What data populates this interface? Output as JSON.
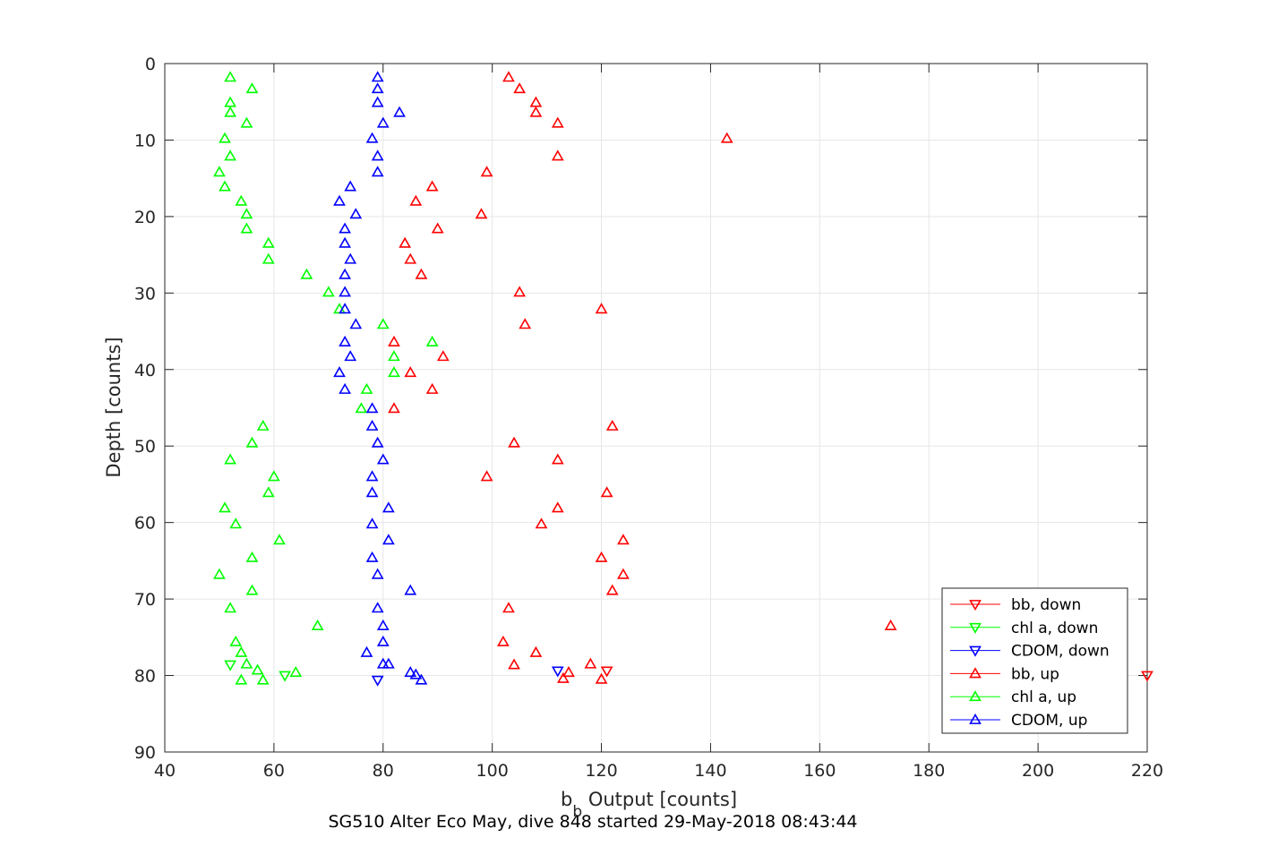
{
  "chart_data": {
    "type": "scatter",
    "title": "SG510 Alter Eco May, dive 848 started 29-May-2018 08:43:44",
    "xlabel_main": "b",
    "xlabel_sub": "b",
    "xlabel_rest": " Output [counts]",
    "ylabel": "Depth [counts]",
    "xlim": [
      40,
      220
    ],
    "ylim": [
      0,
      90
    ],
    "y_reversed": true,
    "grid": true,
    "legend_position": "lower-right",
    "x_ticks": [
      40,
      60,
      80,
      100,
      120,
      140,
      160,
      180,
      200,
      220
    ],
    "y_ticks": [
      0,
      10,
      20,
      30,
      40,
      50,
      60,
      70,
      80,
      90
    ],
    "x_tick_labels": [
      "40",
      "60",
      "80",
      "100",
      "120",
      "140",
      "160",
      "180",
      "200",
      "220"
    ],
    "y_tick_labels": [
      "0",
      "10",
      "20",
      "30",
      "40",
      "50",
      "60",
      "70",
      "80",
      "90"
    ],
    "series": [
      {
        "name": "bb, down",
        "color": "#ff0000",
        "marker": "triangle-down",
        "points": [
          [
            220,
            80.0
          ],
          [
            121,
            79.4
          ]
        ]
      },
      {
        "name": "chl a, down",
        "color": "#00ff00",
        "marker": "triangle-down",
        "points": [
          [
            52,
            78.6
          ],
          [
            62,
            80.0
          ]
        ]
      },
      {
        "name": "CDOM, down",
        "color": "#0000ff",
        "marker": "triangle-down",
        "points": [
          [
            112,
            79.4
          ],
          [
            79,
            80.6
          ]
        ]
      },
      {
        "name": "bb, up",
        "color": "#ff0000",
        "marker": "triangle-up",
        "points": [
          [
            103,
            1.8
          ],
          [
            105,
            3.3
          ],
          [
            108,
            5.1
          ],
          [
            108,
            6.4
          ],
          [
            112,
            7.8
          ],
          [
            143,
            9.8
          ],
          [
            112,
            12.1
          ],
          [
            99,
            14.2
          ],
          [
            89,
            16.1
          ],
          [
            86,
            18.0
          ],
          [
            98,
            19.7
          ],
          [
            90,
            21.6
          ],
          [
            84,
            23.5
          ],
          [
            85,
            25.6
          ],
          [
            87,
            27.6
          ],
          [
            105,
            29.9
          ],
          [
            120,
            32.1
          ],
          [
            106,
            34.1
          ],
          [
            82,
            36.4
          ],
          [
            91,
            38.3
          ],
          [
            85,
            40.4
          ],
          [
            89,
            42.6
          ],
          [
            82,
            45.1
          ],
          [
            122,
            47.4
          ],
          [
            104,
            49.6
          ],
          [
            112,
            51.8
          ],
          [
            99,
            54.0
          ],
          [
            121,
            56.1
          ],
          [
            112,
            58.1
          ],
          [
            109,
            60.2
          ],
          [
            124,
            62.3
          ],
          [
            120,
            64.6
          ],
          [
            124,
            66.8
          ],
          [
            122,
            68.9
          ],
          [
            103,
            71.2
          ],
          [
            173,
            73.5
          ],
          [
            102,
            75.6
          ],
          [
            108,
            77.0
          ],
          [
            104,
            78.6
          ],
          [
            118,
            78.5
          ],
          [
            114,
            79.6
          ],
          [
            113,
            80.4
          ],
          [
            120,
            80.5
          ]
        ]
      },
      {
        "name": "chl a, up",
        "color": "#00ff00",
        "marker": "triangle-up",
        "points": [
          [
            52,
            1.8
          ],
          [
            56,
            3.3
          ],
          [
            52,
            5.1
          ],
          [
            52,
            6.4
          ],
          [
            55,
            7.8
          ],
          [
            51,
            9.8
          ],
          [
            52,
            12.1
          ],
          [
            50,
            14.2
          ],
          [
            51,
            16.1
          ],
          [
            54,
            18.0
          ],
          [
            55,
            19.7
          ],
          [
            55,
            21.6
          ],
          [
            59,
            23.5
          ],
          [
            59,
            25.6
          ],
          [
            66,
            27.6
          ],
          [
            70,
            29.9
          ],
          [
            72,
            32.1
          ],
          [
            80,
            34.1
          ],
          [
            89,
            36.4
          ],
          [
            82,
            38.3
          ],
          [
            82,
            40.4
          ],
          [
            77,
            42.6
          ],
          [
            76,
            45.1
          ],
          [
            58,
            47.4
          ],
          [
            56,
            49.6
          ],
          [
            52,
            51.8
          ],
          [
            60,
            54.0
          ],
          [
            59,
            56.1
          ],
          [
            51,
            58.1
          ],
          [
            53,
            60.2
          ],
          [
            61,
            62.3
          ],
          [
            56,
            64.6
          ],
          [
            50,
            66.8
          ],
          [
            56,
            68.9
          ],
          [
            52,
            71.2
          ],
          [
            68,
            73.5
          ],
          [
            53,
            75.6
          ],
          [
            54,
            77.0
          ],
          [
            55,
            78.5
          ],
          [
            57,
            79.3
          ],
          [
            64,
            79.6
          ],
          [
            54,
            80.6
          ],
          [
            58,
            80.6
          ]
        ]
      },
      {
        "name": "CDOM, up",
        "color": "#0000ff",
        "marker": "triangle-up",
        "points": [
          [
            79,
            1.8
          ],
          [
            79,
            3.3
          ],
          [
            79,
            5.1
          ],
          [
            83,
            6.4
          ],
          [
            80,
            7.8
          ],
          [
            78,
            9.8
          ],
          [
            79,
            12.1
          ],
          [
            79,
            14.2
          ],
          [
            74,
            16.1
          ],
          [
            72,
            18.0
          ],
          [
            75,
            19.7
          ],
          [
            73,
            21.6
          ],
          [
            73,
            23.5
          ],
          [
            74,
            25.6
          ],
          [
            73,
            27.6
          ],
          [
            73,
            29.9
          ],
          [
            73,
            32.1
          ],
          [
            75,
            34.1
          ],
          [
            73,
            36.4
          ],
          [
            74,
            38.3
          ],
          [
            72,
            40.4
          ],
          [
            73,
            42.6
          ],
          [
            78,
            45.1
          ],
          [
            78,
            47.4
          ],
          [
            79,
            49.6
          ],
          [
            80,
            51.8
          ],
          [
            78,
            54.0
          ],
          [
            78,
            56.1
          ],
          [
            81,
            58.1
          ],
          [
            78,
            60.2
          ],
          [
            81,
            62.3
          ],
          [
            78,
            64.6
          ],
          [
            79,
            66.8
          ],
          [
            85,
            68.9
          ],
          [
            79,
            71.2
          ],
          [
            80,
            73.5
          ],
          [
            80,
            75.6
          ],
          [
            77,
            77.0
          ],
          [
            81,
            78.5
          ],
          [
            80,
            78.5
          ],
          [
            85,
            79.6
          ],
          [
            86,
            79.9
          ],
          [
            87,
            80.6
          ]
        ]
      }
    ]
  }
}
